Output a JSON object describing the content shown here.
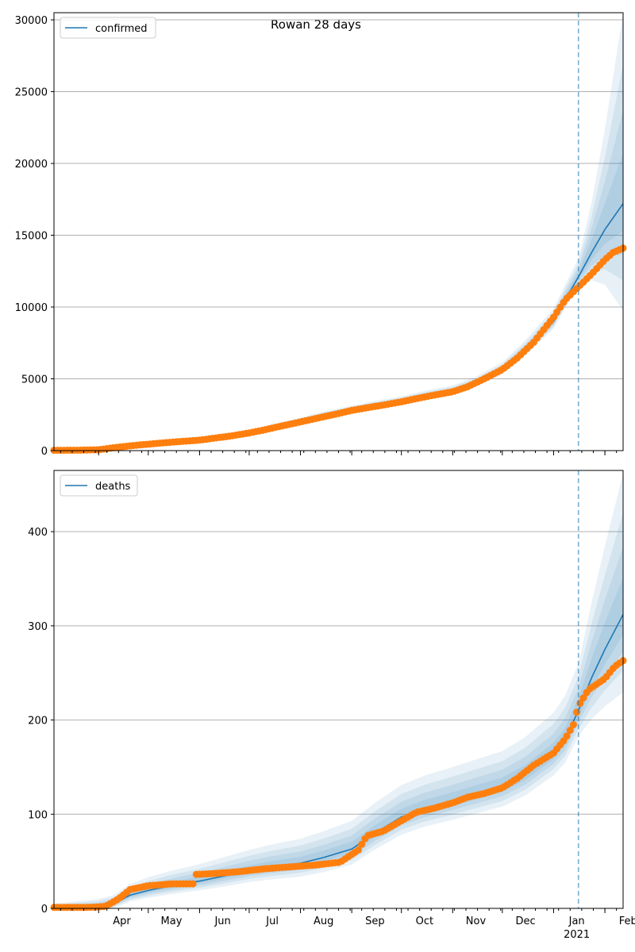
{
  "title": "Rowan 28 days",
  "colors": {
    "line": "#1f77b4",
    "band": "#1f77b4",
    "observed": "#ff7f0e",
    "grid": "#b0b0b0",
    "forecast_marker": "#1f77b4"
  },
  "chart_data": [
    {
      "type": "line",
      "panel": "top",
      "title": "Rowan 28 days",
      "legend": {
        "label": "confirmed",
        "placement": "top-left"
      },
      "xlim": [
        "2020-03-05",
        "2021-02-12"
      ],
      "ylim": [
        0,
        30500
      ],
      "yticks": [
        0,
        5000,
        10000,
        15000,
        20000,
        25000,
        30000
      ],
      "ytick_labels": [
        "0",
        "5000",
        "10000",
        "15000",
        "20000",
        "25000",
        "30000"
      ],
      "show_x_labels": false,
      "grid": "horizontal",
      "forecast_start": "2021-01-16",
      "x": [
        "2020-03-05",
        "2020-04-01",
        "2020-04-15",
        "2020-05-01",
        "2020-05-15",
        "2020-06-01",
        "2020-06-15",
        "2020-07-01",
        "2020-07-15",
        "2020-08-01",
        "2020-08-15",
        "2020-09-01",
        "2020-09-15",
        "2020-10-01",
        "2020-10-15",
        "2020-11-01",
        "2020-11-15",
        "2020-12-01",
        "2020-12-15",
        "2021-01-01",
        "2021-01-08",
        "2021-01-16",
        "2021-01-24",
        "2021-02-01",
        "2021-02-12"
      ],
      "series": [
        {
          "name": "confirmed",
          "kind": "model",
          "values": [
            10,
            30,
            200,
            380,
            520,
            700,
            950,
            1250,
            1620,
            2050,
            2450,
            2850,
            3150,
            3450,
            3800,
            4150,
            4700,
            5600,
            7000,
            9000,
            10500,
            12100,
            13800,
            15400,
            17200
          ],
          "band_width": [
            10,
            20,
            60,
            90,
            110,
            130,
            160,
            190,
            220,
            250,
            270,
            290,
            310,
            330,
            360,
            380,
            450,
            550,
            700,
            900,
            1050,
            1300,
            3500,
            7000,
            13500
          ]
        },
        {
          "name": "observed",
          "kind": "points",
          "x": [
            "2020-03-05",
            "2020-03-20",
            "2020-04-01",
            "2020-04-10",
            "2020-04-20",
            "2020-05-01",
            "2020-05-10",
            "2020-05-20",
            "2020-06-01",
            "2020-06-10",
            "2020-06-20",
            "2020-07-01",
            "2020-07-10",
            "2020-07-20",
            "2020-08-01",
            "2020-08-10",
            "2020-08-20",
            "2020-09-01",
            "2020-09-10",
            "2020-09-20",
            "2020-10-01",
            "2020-10-10",
            "2020-10-20",
            "2020-11-01",
            "2020-11-10",
            "2020-11-20",
            "2020-12-01",
            "2020-12-10",
            "2020-12-20",
            "2021-01-01",
            "2021-01-08",
            "2021-01-16",
            "2021-01-24",
            "2021-02-01",
            "2021-02-06",
            "2021-02-12"
          ],
          "values": [
            20,
            30,
            60,
            200,
            330,
            450,
            540,
            630,
            730,
            870,
            1020,
            1230,
            1440,
            1700,
            2000,
            2230,
            2480,
            2800,
            2980,
            3170,
            3400,
            3620,
            3850,
            4100,
            4450,
            5000,
            5650,
            6450,
            7550,
            9300,
            10500,
            11400,
            12300,
            13300,
            13800,
            14100
          ]
        }
      ]
    },
    {
      "type": "line",
      "panel": "bottom",
      "legend": {
        "label": "deaths",
        "placement": "top-left"
      },
      "xlim": [
        "2020-03-05",
        "2021-02-12"
      ],
      "ylim": [
        0,
        465
      ],
      "yticks": [
        0,
        100,
        200,
        300,
        400
      ],
      "ytick_labels": [
        "0",
        "100",
        "200",
        "300",
        "400"
      ],
      "xtick_labels": [
        {
          "date": "2020-04-01",
          "label": "Apr"
        },
        {
          "date": "2020-05-01",
          "label": "May"
        },
        {
          "date": "2020-06-01",
          "label": "Jun"
        },
        {
          "date": "2020-07-01",
          "label": "Jul"
        },
        {
          "date": "2020-08-01",
          "label": "Aug"
        },
        {
          "date": "2020-09-01",
          "label": "Sep"
        },
        {
          "date": "2020-10-01",
          "label": "Oct"
        },
        {
          "date": "2020-11-01",
          "label": "Nov"
        },
        {
          "date": "2020-12-01",
          "label": "Dec"
        },
        {
          "date": "2021-01-01",
          "label": "Jan"
        },
        {
          "date": "2021-02-01",
          "label": "Feb"
        }
      ],
      "year_label": {
        "date": "2021-01-01",
        "label": "2021"
      },
      "grid": "horizontal",
      "forecast_start": "2021-01-16",
      "x": [
        "2020-03-05",
        "2020-04-01",
        "2020-04-10",
        "2020-04-20",
        "2020-05-01",
        "2020-05-15",
        "2020-06-01",
        "2020-06-15",
        "2020-07-01",
        "2020-07-15",
        "2020-08-01",
        "2020-08-15",
        "2020-09-01",
        "2020-09-15",
        "2020-10-01",
        "2020-10-15",
        "2020-11-01",
        "2020-11-15",
        "2020-12-01",
        "2020-12-15",
        "2021-01-01",
        "2021-01-08",
        "2021-01-16",
        "2021-01-24",
        "2021-02-01",
        "2021-02-12"
      ],
      "series": [
        {
          "name": "deaths",
          "kind": "model",
          "values": [
            1,
            2,
            5,
            14,
            19,
            24,
            29,
            34,
            40,
            44,
            48,
            54,
            63,
            80,
            97,
            106,
            114,
            121,
            129,
            142,
            165,
            180,
            210,
            245,
            275,
            312
          ],
          "band_width": [
            4,
            8,
            9,
            12,
            14,
            16,
            18,
            20,
            22,
            24,
            26,
            28,
            30,
            32,
            34,
            35,
            36,
            37,
            38,
            40,
            43,
            46,
            50,
            80,
            110,
            150
          ]
        },
        {
          "name": "observed",
          "kind": "points",
          "x": [
            "2020-03-05",
            "2020-03-25",
            "2020-04-05",
            "2020-04-13",
            "2020-04-20",
            "2020-05-01",
            "2020-05-15",
            "2020-05-28",
            "2020-05-29",
            "2020-06-10",
            "2020-06-25",
            "2020-07-10",
            "2020-07-25",
            "2020-08-10",
            "2020-08-25",
            "2020-09-05",
            "2020-09-10",
            "2020-09-20",
            "2020-09-30",
            "2020-10-10",
            "2020-10-20",
            "2020-11-01",
            "2020-11-10",
            "2020-11-20",
            "2020-12-01",
            "2020-12-10",
            "2020-12-20",
            "2021-01-01",
            "2021-01-08",
            "2021-01-13",
            "2021-01-16",
            "2021-01-22",
            "2021-02-01",
            "2021-02-07",
            "2021-02-12"
          ],
          "values": [
            1,
            1,
            2,
            10,
            20,
            24,
            26,
            26,
            36,
            37,
            39,
            42,
            44,
            46,
            49,
            62,
            77,
            82,
            92,
            102,
            106,
            112,
            118,
            122,
            128,
            138,
            152,
            165,
            180,
            195,
            215,
            232,
            244,
            257,
            263
          ]
        }
      ]
    }
  ]
}
